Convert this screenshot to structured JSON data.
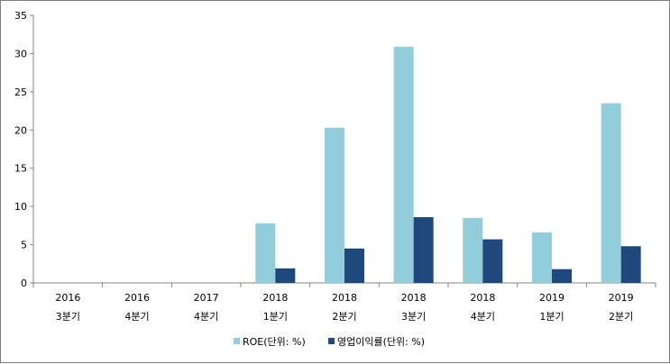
{
  "chart_data": {
    "type": "bar",
    "categories": [
      [
        "2016",
        "3분기"
      ],
      [
        "2016",
        "4분기"
      ],
      [
        "2017",
        "4분기"
      ],
      [
        "2018",
        "1분기"
      ],
      [
        "2018",
        "2분기"
      ],
      [
        "2018",
        "3분기"
      ],
      [
        "2018",
        "4분기"
      ],
      [
        "2019",
        "1분기"
      ],
      [
        "2019",
        "2분기"
      ]
    ],
    "series": [
      {
        "name": "ROE(단위: %)",
        "color": "#92cddc",
        "values": [
          0,
          0,
          0,
          7.8,
          20.3,
          30.9,
          8.5,
          6.6,
          23.5
        ]
      },
      {
        "name": "영업이익률(단위: %)",
        "color": "#1f497d",
        "values": [
          0,
          0,
          0,
          1.9,
          4.5,
          8.6,
          5.7,
          1.8,
          4.8
        ]
      }
    ],
    "ylim": [
      0,
      35
    ],
    "yticks": [
      "0",
      "5",
      "10",
      "15",
      "20",
      "25",
      "30",
      "35"
    ],
    "grid": false,
    "legend_position": "bottom",
    "title": "",
    "xlabel": "",
    "ylabel": ""
  }
}
